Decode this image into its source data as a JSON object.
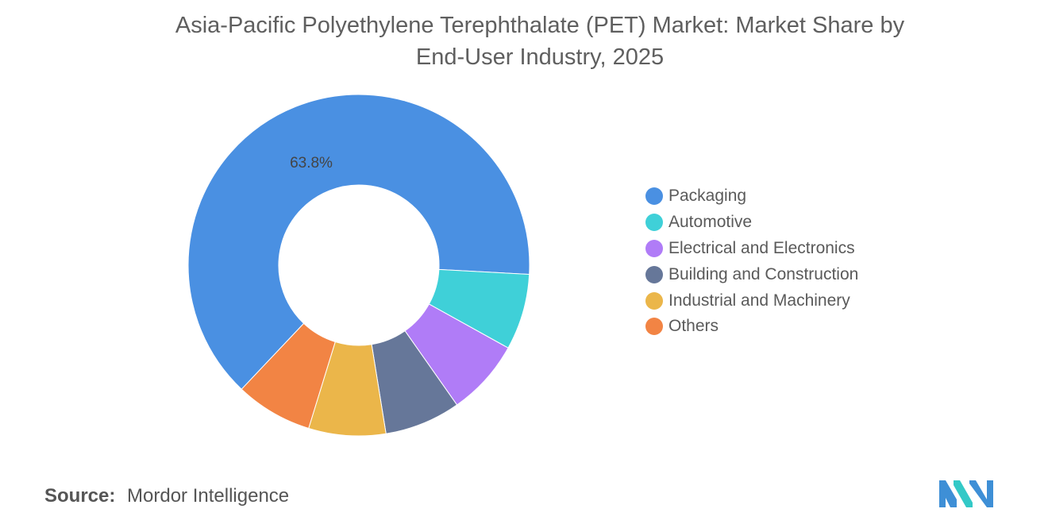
{
  "title_line1": "Asia-Pacific Polyethylene Terephthalate (PET) Market: Market Share by",
  "title_line2": "End-User Industry, 2025",
  "chart_data": {
    "type": "pie",
    "variant": "donut",
    "title": "Asia-Pacific Polyethylene Terephthalate (PET) Market: Market Share by End-User Industry, 2025",
    "unit": "%",
    "legend_position": "right",
    "categories": [
      "Packaging",
      "Automotive",
      "Electrical and Electronics",
      "Building and Construction",
      "Industrial and Machinery",
      "Others"
    ],
    "values": [
      63.8,
      7.2,
      7.2,
      7.2,
      7.3,
      7.3
    ],
    "colors": [
      "#4A90E2",
      "#3FD0D8",
      "#B07CF7",
      "#667799",
      "#EBB64A",
      "#F28444"
    ],
    "data_labels": [
      "63.8%",
      "",
      "",
      "",
      "",
      ""
    ]
  },
  "source": {
    "label": "Source:",
    "value": "Mordor Intelligence"
  },
  "logo": {
    "colors": [
      "#3E8FD6",
      "#33C9C7"
    ]
  }
}
